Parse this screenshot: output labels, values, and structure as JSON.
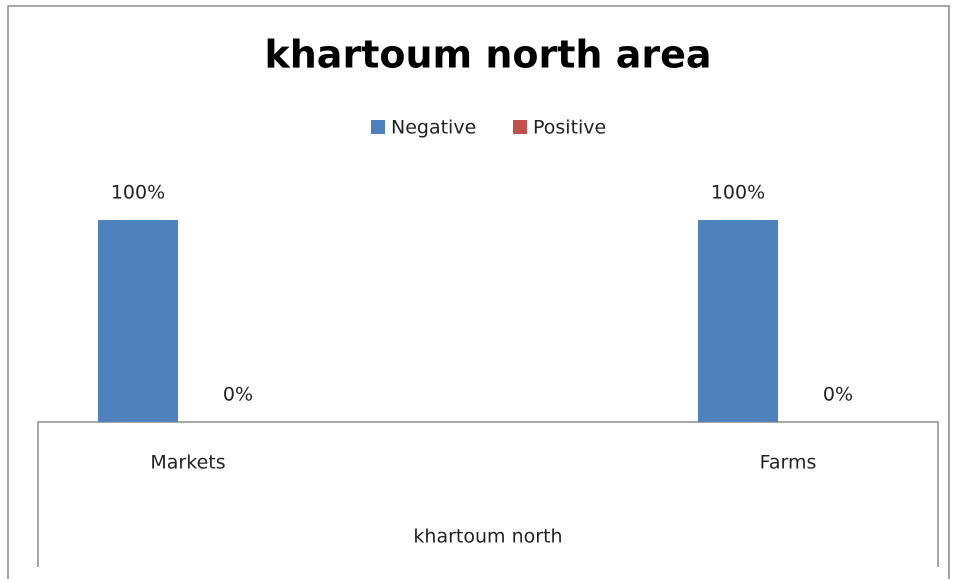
{
  "chart_data": {
    "type": "bar",
    "title": "khartoum north area",
    "categories": [
      "Markets",
      "Farms"
    ],
    "xlabel": "khartoum north",
    "series": [
      {
        "name": "Negative",
        "color": "#4f81bd",
        "values": [
          100,
          100
        ],
        "value_labels": [
          "100%",
          "100%"
        ]
      },
      {
        "name": "Positive",
        "color": "#c0504d",
        "values": [
          0,
          0
        ],
        "value_labels": [
          "0%",
          "0%"
        ]
      }
    ],
    "ylim": [
      0,
      100
    ],
    "legend": "top"
  }
}
